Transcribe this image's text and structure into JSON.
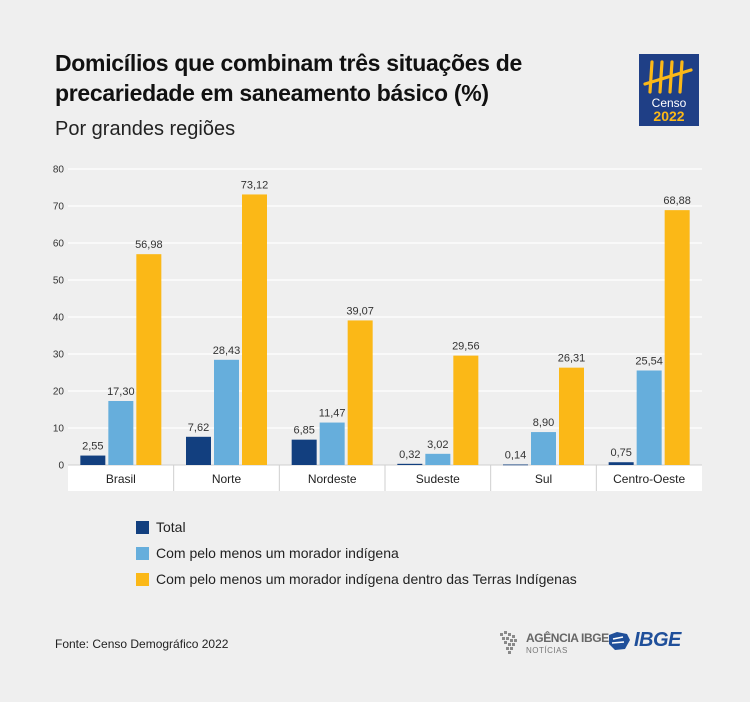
{
  "title": "Domicílios que combinam três situações de precariedade em saneamento básico (%)",
  "subtitle": "Por grandes regiões",
  "logo": {
    "name": "censo-2022-logo",
    "line1": "Censo",
    "line2": "2022",
    "color": "#1f3f86"
  },
  "colors": {
    "total": "#123f7f",
    "indigena": "#66aedc",
    "terras": "#fbb817",
    "background": "#efefef"
  },
  "chart_data": {
    "type": "bar",
    "categories": [
      "Brasil",
      "Norte",
      "Nordeste",
      "Sudeste",
      "Sul",
      "Centro-Oeste"
    ],
    "series": [
      {
        "name": "Total",
        "values": [
          2.55,
          7.62,
          6.85,
          0.32,
          0.14,
          0.75
        ]
      },
      {
        "name": "Com pelo menos um morador indígena",
        "values": [
          17.3,
          28.43,
          11.47,
          3.02,
          8.9,
          25.54
        ]
      },
      {
        "name": "Com pelo menos um morador indígena dentro das Terras Indígenas",
        "values": [
          56.98,
          73.12,
          39.07,
          29.56,
          26.31,
          68.88
        ]
      }
    ],
    "value_labels": [
      [
        "2,55",
        "7,62",
        "6,85",
        "0,32",
        "0,14",
        "0,75"
      ],
      [
        "17,30",
        "28,43",
        "11,47",
        "3,02",
        "8,90",
        "25,54"
      ],
      [
        "56,98",
        "73,12",
        "39,07",
        "29,56",
        "26,31",
        "68,88"
      ]
    ],
    "yticks": [
      "0",
      "10",
      "20",
      "30",
      "40",
      "50",
      "60",
      "70",
      "80"
    ],
    "ylim": [
      0,
      80
    ],
    "grid": true,
    "legend_position": "bottom"
  },
  "legend": [
    {
      "label": "Total"
    },
    {
      "label": "Com pelo menos um morador indígena"
    },
    {
      "label": "Com pelo menos um morador indígena dentro das Terras Indígenas"
    }
  ],
  "source": "Fonte: Censo Demográfico 2022",
  "agencia": {
    "top": "AGÊNCIA IBGE",
    "bottom": "NOTÍCIAS"
  },
  "ibge": {
    "label": "IBGE"
  }
}
